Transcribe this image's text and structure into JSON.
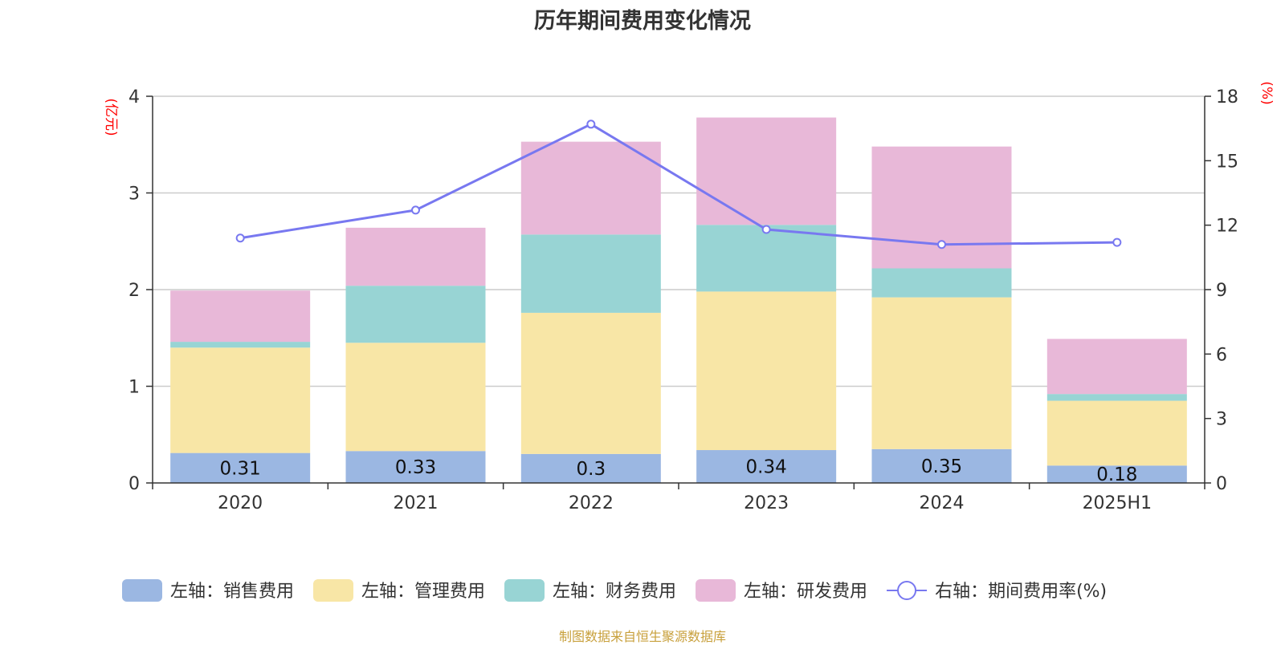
{
  "title": "历年期间费用变化情况",
  "source": "制图数据来自恒生聚源数据库",
  "chart_data": {
    "type": "bar",
    "stacked": true,
    "categories": [
      "2020",
      "2021",
      "2022",
      "2023",
      "2024",
      "2025H1"
    ],
    "left_axis": {
      "unit": "(亿元)",
      "ylim": [
        0,
        4
      ],
      "ticks": [
        "0",
        "1",
        "2",
        "3",
        "4"
      ]
    },
    "right_axis": {
      "unit": "(%)",
      "ylim": [
        0,
        18
      ],
      "ticks": [
        "0",
        "3",
        "6",
        "9",
        "12",
        "15",
        "18"
      ]
    },
    "series": [
      {
        "name": "左轴：销售费用",
        "axis": "left",
        "kind": "bar",
        "color": "#9bb7e2",
        "values": [
          0.31,
          0.33,
          0.3,
          0.34,
          0.35,
          0.18
        ],
        "labels": [
          "0.31",
          "0.33",
          "0.3",
          "0.34",
          "0.35",
          "0.18"
        ]
      },
      {
        "name": "左轴：管理费用",
        "axis": "left",
        "kind": "bar",
        "color": "#f8e6a6",
        "values": [
          1.09,
          1.12,
          1.46,
          1.64,
          1.57,
          0.67
        ]
      },
      {
        "name": "左轴：财务费用",
        "axis": "left",
        "kind": "bar",
        "color": "#98d4d4",
        "values": [
          0.06,
          0.59,
          0.81,
          0.69,
          0.3,
          0.07
        ]
      },
      {
        "name": "左轴：研发费用",
        "axis": "left",
        "kind": "bar",
        "color": "#e8b8d8",
        "values": [
          0.53,
          0.6,
          0.96,
          1.11,
          1.26,
          0.57
        ]
      },
      {
        "name": "右轴：期间费用率(%)",
        "axis": "right",
        "kind": "line",
        "color": "#7878f0",
        "values": [
          11.4,
          12.7,
          16.7,
          11.8,
          11.1,
          11.2
        ]
      }
    ],
    "grid": true,
    "legend_position": "bottom"
  }
}
